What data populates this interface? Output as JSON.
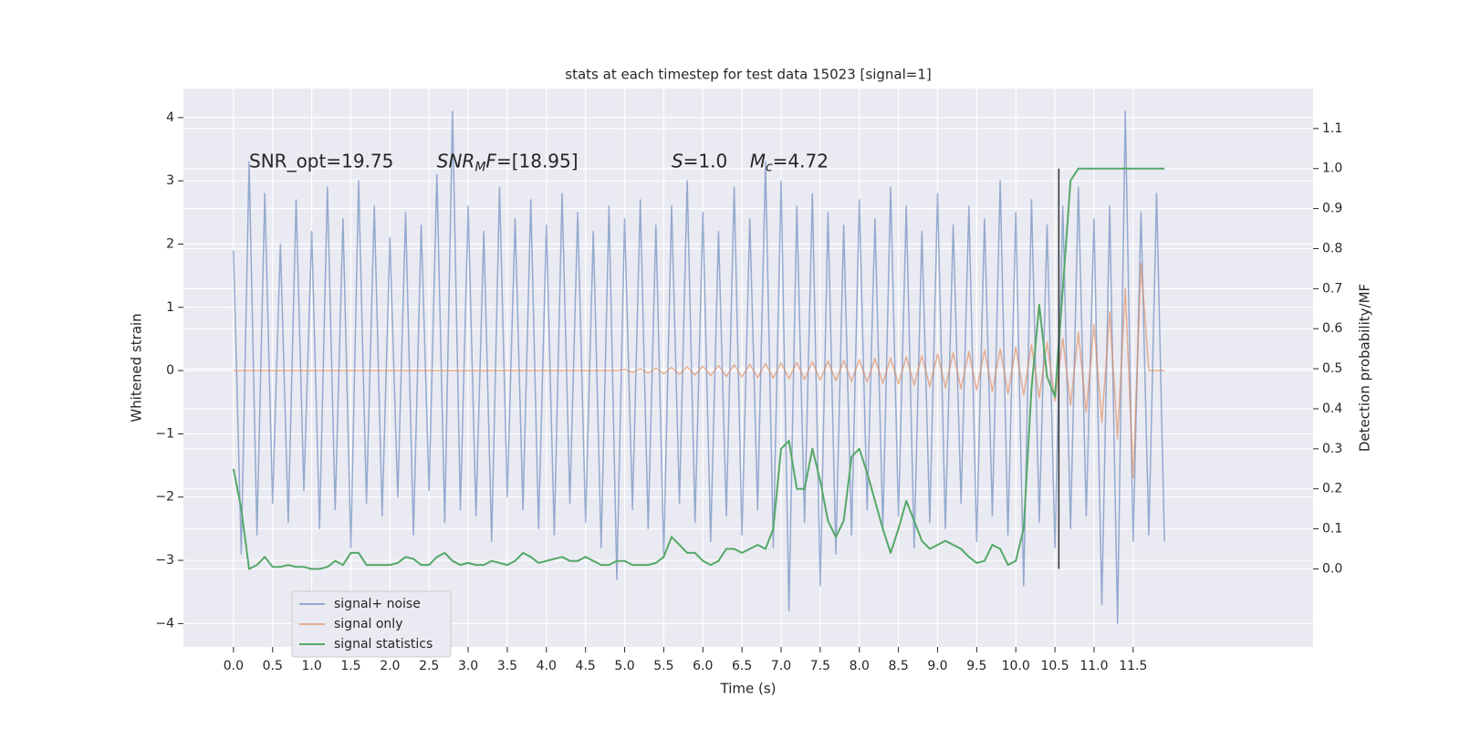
{
  "chart_data": {
    "type": "line",
    "title": "stats at each timestep for test data 15023 [signal=1]",
    "xlabel": "Time (s)",
    "ylabel": "Whitened strain",
    "y2label": "Detection probability/MF",
    "x": [
      0.0,
      0.1,
      0.2,
      0.3,
      0.4,
      0.5,
      0.6,
      0.7,
      0.8,
      0.9,
      1.0,
      1.1,
      1.2,
      1.3,
      1.4,
      1.5,
      1.6,
      1.7,
      1.8,
      1.9,
      2.0,
      2.1,
      2.2,
      2.3,
      2.4,
      2.5,
      2.6,
      2.7,
      2.8,
      2.9,
      3.0,
      3.1,
      3.2,
      3.3,
      3.4,
      3.5,
      3.6,
      3.7,
      3.8,
      3.9,
      4.0,
      4.1,
      4.2,
      4.3,
      4.4,
      4.5,
      4.6,
      4.7,
      4.8,
      4.9,
      5.0,
      5.1,
      5.2,
      5.3,
      5.4,
      5.5,
      5.6,
      5.7,
      5.8,
      5.9,
      6.0,
      6.1,
      6.2,
      6.3,
      6.4,
      6.5,
      6.6,
      6.7,
      6.8,
      6.9,
      7.0,
      7.1,
      7.2,
      7.3,
      7.4,
      7.5,
      7.6,
      7.7,
      7.8,
      7.9,
      8.0,
      8.1,
      8.2,
      8.3,
      8.4,
      8.5,
      8.6,
      8.7,
      8.8,
      8.9,
      9.0,
      9.1,
      9.2,
      9.3,
      9.4,
      9.5,
      9.6,
      9.7,
      9.8,
      9.9,
      10.0,
      10.1,
      10.2,
      10.3,
      10.4,
      10.5,
      10.6,
      10.7,
      10.8,
      10.9,
      11.0,
      11.1,
      11.2,
      11.3,
      11.4,
      11.5,
      11.6,
      11.7,
      11.8,
      11.9
    ],
    "series": [
      {
        "name": "signal+ noise",
        "color": "#4c72b0",
        "alpha": 0.55,
        "axis": "y",
        "values": [
          1.9,
          -2.9,
          3.3,
          -2.6,
          2.8,
          -2.1,
          2.0,
          -2.4,
          2.7,
          -1.9,
          2.2,
          -2.5,
          2.9,
          -2.2,
          2.4,
          -2.8,
          3.0,
          -2.1,
          2.6,
          -2.3,
          2.1,
          -2.0,
          2.5,
          -2.6,
          2.3,
          -1.9,
          3.1,
          -2.4,
          4.1,
          -2.2,
          2.6,
          -2.3,
          2.2,
          -2.7,
          2.9,
          -2.0,
          2.4,
          -2.2,
          2.7,
          -2.5,
          2.3,
          -2.6,
          2.8,
          -2.1,
          2.5,
          -2.4,
          2.2,
          -2.8,
          2.6,
          -3.3,
          2.4,
          -2.2,
          2.7,
          -2.5,
          2.3,
          -2.9,
          2.6,
          -2.1,
          3.0,
          -2.4,
          2.5,
          -2.7,
          2.2,
          -2.3,
          2.9,
          -2.6,
          2.4,
          -2.2,
          3.3,
          -2.8,
          3.0,
          -3.8,
          2.6,
          -2.4,
          2.8,
          -3.4,
          2.5,
          -2.9,
          2.3,
          -2.6,
          2.7,
          -2.2,
          2.4,
          -2.5,
          2.9,
          -2.3,
          2.6,
          -2.8,
          2.2,
          -2.4,
          2.8,
          -2.5,
          2.3,
          -2.1,
          2.6,
          -2.7,
          2.4,
          -2.3,
          3.0,
          -2.6,
          2.5,
          -3.4,
          2.7,
          -2.4,
          2.3,
          -2.8,
          2.6,
          -2.5,
          2.9,
          -2.3,
          2.4,
          -3.7,
          2.6,
          -4.0,
          4.1,
          -2.7,
          2.5,
          -2.6,
          2.8,
          -2.7
        ]
      },
      {
        "name": "signal only",
        "color": "#dd8452",
        "alpha": 0.6,
        "axis": "y",
        "values": [
          0,
          0,
          0,
          0,
          0,
          0,
          0,
          0,
          0,
          0,
          0,
          0,
          0,
          0,
          0,
          0,
          0,
          0,
          0,
          0,
          0,
          0,
          0,
          0,
          0,
          0,
          0,
          0,
          0,
          0,
          0,
          0,
          0,
          0,
          0,
          0,
          0,
          0,
          0,
          0,
          0,
          0,
          0,
          0,
          0,
          0,
          0,
          0,
          0,
          0,
          0.02,
          -0.03,
          0.03,
          -0.04,
          0.04,
          -0.05,
          0.05,
          -0.06,
          0.06,
          -0.07,
          0.07,
          -0.08,
          0.08,
          -0.09,
          0.09,
          -0.1,
          0.1,
          -0.11,
          0.11,
          -0.12,
          0.12,
          -0.13,
          0.13,
          -0.14,
          0.14,
          -0.15,
          0.15,
          -0.16,
          0.16,
          -0.17,
          0.17,
          -0.18,
          0.19,
          -0.2,
          0.2,
          -0.21,
          0.22,
          -0.23,
          0.24,
          -0.25,
          0.26,
          -0.27,
          0.28,
          -0.29,
          0.3,
          -0.31,
          0.32,
          -0.33,
          0.34,
          -0.36,
          0.37,
          -0.39,
          0.41,
          -0.43,
          0.45,
          -0.48,
          0.51,
          -0.55,
          0.6,
          -0.66,
          0.73,
          -0.82,
          0.93,
          -1.08,
          1.3,
          -1.7,
          1.7,
          0,
          0,
          0
        ]
      },
      {
        "name": "signal statistics",
        "color": "#55a868",
        "alpha": 1,
        "axis": "y2",
        "values": [
          0.25,
          0.15,
          0.0,
          0.01,
          0.03,
          0.005,
          0.005,
          0.01,
          0.005,
          0.005,
          0.0,
          0.0,
          0.005,
          0.02,
          0.01,
          0.04,
          0.04,
          0.01,
          0.01,
          0.01,
          0.01,
          0.015,
          0.03,
          0.025,
          0.01,
          0.01,
          0.03,
          0.04,
          0.02,
          0.01,
          0.015,
          0.01,
          0.01,
          0.02,
          0.015,
          0.01,
          0.02,
          0.04,
          0.03,
          0.015,
          0.02,
          0.025,
          0.03,
          0.02,
          0.02,
          0.03,
          0.02,
          0.01,
          0.01,
          0.02,
          0.02,
          0.01,
          0.01,
          0.01,
          0.015,
          0.03,
          0.08,
          0.06,
          0.04,
          0.04,
          0.02,
          0.01,
          0.02,
          0.05,
          0.05,
          0.04,
          0.05,
          0.06,
          0.05,
          0.1,
          0.3,
          0.32,
          0.2,
          0.2,
          0.3,
          0.22,
          0.12,
          0.08,
          0.12,
          0.28,
          0.3,
          0.24,
          0.17,
          0.1,
          0.04,
          0.1,
          0.17,
          0.12,
          0.07,
          0.05,
          0.06,
          0.07,
          0.06,
          0.05,
          0.03,
          0.015,
          0.02,
          0.06,
          0.05,
          0.01,
          0.02,
          0.1,
          0.45,
          0.66,
          0.48,
          0.43,
          0.7,
          0.97,
          1.0,
          1.0,
          1.0,
          1.0,
          1.0,
          1.0,
          1.0,
          1.0,
          1.0,
          1.0,
          1.0,
          1.0
        ]
      }
    ],
    "vline": {
      "x": 10.55,
      "ymin": 0.0,
      "ymax": 1.0,
      "color": "#333333"
    },
    "annotations": [
      [
        {
          "t": "SNR_opt=19.75"
        }
      ],
      [
        {
          "t": "SNR",
          "i": true
        },
        {
          "t": "M",
          "i": true,
          "sub": true
        },
        {
          "t": "F",
          "i": true
        },
        {
          "t": "=[18.95]"
        }
      ],
      [
        {
          "t": "S",
          "i": true
        },
        {
          "t": "=1.0"
        }
      ],
      [
        {
          "t": "M",
          "i": true
        },
        {
          "t": "c",
          "i": true,
          "sub": true
        },
        {
          "t": "=4.72"
        }
      ]
    ],
    "xlim": [
      -0.64,
      13.8
    ],
    "ylim": [
      -4.37,
      4.46
    ],
    "y2lim": [
      -0.195,
      1.2
    ],
    "xticks": [
      {
        "value": 0,
        "label": "0.0"
      },
      {
        "value": 0.5,
        "label": "0.5"
      },
      {
        "value": 1,
        "label": "1.0"
      },
      {
        "value": 1.5,
        "label": "1.5"
      },
      {
        "value": 2,
        "label": "2.0"
      },
      {
        "value": 2.5,
        "label": "2.5"
      },
      {
        "value": 3,
        "label": "3.0"
      },
      {
        "value": 3.5,
        "label": "3.5"
      },
      {
        "value": 4,
        "label": "4.0"
      },
      {
        "value": 4.5,
        "label": "4.5"
      },
      {
        "value": 5,
        "label": "5.0"
      },
      {
        "value": 5.5,
        "label": "5.5"
      },
      {
        "value": 6,
        "label": "6.0"
      },
      {
        "value": 6.5,
        "label": "6.5"
      },
      {
        "value": 7,
        "label": "7.0"
      },
      {
        "value": 7.5,
        "label": "7.5"
      },
      {
        "value": 8,
        "label": "8.0"
      },
      {
        "value": 8.5,
        "label": "8.5"
      },
      {
        "value": 9,
        "label": "9.0"
      },
      {
        "value": 9.5,
        "label": "9.5"
      },
      {
        "value": 10,
        "label": "10.0"
      },
      {
        "value": 10.5,
        "label": "10.5"
      },
      {
        "value": 11,
        "label": "11.0"
      },
      {
        "value": 11.5,
        "label": "11.5"
      }
    ],
    "yticks": [
      {
        "value": -4,
        "label": "−4"
      },
      {
        "value": -3,
        "label": "−3"
      },
      {
        "value": -2,
        "label": "−2"
      },
      {
        "value": -1,
        "label": "−1"
      },
      0,
      1,
      2,
      3,
      4
    ],
    "y2ticks": [
      {
        "value": 0,
        "label": "0.0"
      },
      {
        "value": 0.1,
        "label": "0.1"
      },
      {
        "value": 0.2,
        "label": "0.2"
      },
      {
        "value": 0.3,
        "label": "0.3"
      },
      {
        "value": 0.4,
        "label": "0.4"
      },
      {
        "value": 0.5,
        "label": "0.5"
      },
      {
        "value": 0.6,
        "label": "0.6"
      },
      {
        "value": 0.7,
        "label": "0.7"
      },
      {
        "value": 0.8,
        "label": "0.8"
      },
      {
        "value": 0.9,
        "label": "0.9"
      },
      {
        "value": 1,
        "label": "1.0"
      },
      {
        "value": 1.1,
        "label": "1.1"
      }
    ],
    "grid": true,
    "legend": "lower left"
  }
}
